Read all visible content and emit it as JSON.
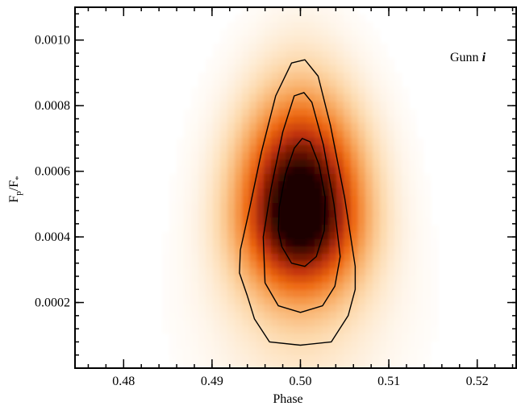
{
  "chart_data": {
    "type": "heatmap",
    "title": "",
    "xlabel": "Phase",
    "ylabel_main": "F",
    "ylabel_sub_p": "p",
    "ylabel_sub_star": "*",
    "xlim": [
      0.4745,
      0.5245
    ],
    "ylim": [
      0.0,
      0.0011
    ],
    "xticks": [
      0.48,
      0.49,
      0.5,
      0.51,
      0.52
    ],
    "xtick_labels": [
      "0.48",
      "0.49",
      "0.50",
      "0.51",
      "0.52"
    ],
    "yticks": [
      0.0002,
      0.0004,
      0.0006,
      0.0008,
      0.001
    ],
    "ytick_labels": [
      "0.0002",
      "0.0004",
      "0.0006",
      "0.0008",
      "0.0010"
    ],
    "annotation_text": "Gunn ",
    "annotation_italic": "i",
    "peak": {
      "x": 0.5,
      "y": 0.00048
    },
    "colormap": [
      "#ffffff",
      "#fdd9ac",
      "#f7a55a",
      "#ee6a12",
      "#c2340a",
      "#6d1402",
      "#1b0000"
    ],
    "contours": [
      {
        "level": "outer",
        "points": [
          [
            0.494,
            0.00022
          ],
          [
            0.4948,
            0.00015
          ],
          [
            0.4965,
            8e-05
          ],
          [
            0.5,
            7e-05
          ],
          [
            0.5035,
            8e-05
          ],
          [
            0.5054,
            0.00016
          ],
          [
            0.5062,
            0.00024
          ],
          [
            0.5062,
            0.00031
          ],
          [
            0.505,
            0.00052
          ],
          [
            0.5034,
            0.00074
          ],
          [
            0.502,
            0.00089
          ],
          [
            0.5005,
            0.00094
          ],
          [
            0.499,
            0.00093
          ],
          [
            0.4972,
            0.00083
          ],
          [
            0.4956,
            0.00066
          ],
          [
            0.4942,
            0.00048
          ],
          [
            0.4932,
            0.00036
          ],
          [
            0.4931,
            0.00029
          ],
          [
            0.494,
            0.00022
          ]
        ]
      },
      {
        "level": "middle",
        "points": [
          [
            0.496,
            0.00026
          ],
          [
            0.4975,
            0.00019
          ],
          [
            0.5,
            0.00017
          ],
          [
            0.5025,
            0.00019
          ],
          [
            0.5039,
            0.00025
          ],
          [
            0.5045,
            0.00034
          ],
          [
            0.5038,
            0.0005
          ],
          [
            0.5026,
            0.00068
          ],
          [
            0.5013,
            0.00081
          ],
          [
            0.5004,
            0.00084
          ],
          [
            0.4993,
            0.00083
          ],
          [
            0.498,
            0.00072
          ],
          [
            0.4967,
            0.00055
          ],
          [
            0.4958,
            0.0004
          ],
          [
            0.496,
            0.00026
          ]
        ]
      },
      {
        "level": "inner",
        "points": [
          [
            0.4979,
            0.00037
          ],
          [
            0.499,
            0.00032
          ],
          [
            0.5005,
            0.00031
          ],
          [
            0.5018,
            0.00034
          ],
          [
            0.5027,
            0.00042
          ],
          [
            0.5028,
            0.00052
          ],
          [
            0.5021,
            0.00062
          ],
          [
            0.5011,
            0.00069
          ],
          [
            0.5002,
            0.0007
          ],
          [
            0.4993,
            0.00067
          ],
          [
            0.4983,
            0.00059
          ],
          [
            0.4976,
            0.00049
          ],
          [
            0.4975,
            0.00042
          ],
          [
            0.4979,
            0.00037
          ]
        ]
      }
    ]
  }
}
